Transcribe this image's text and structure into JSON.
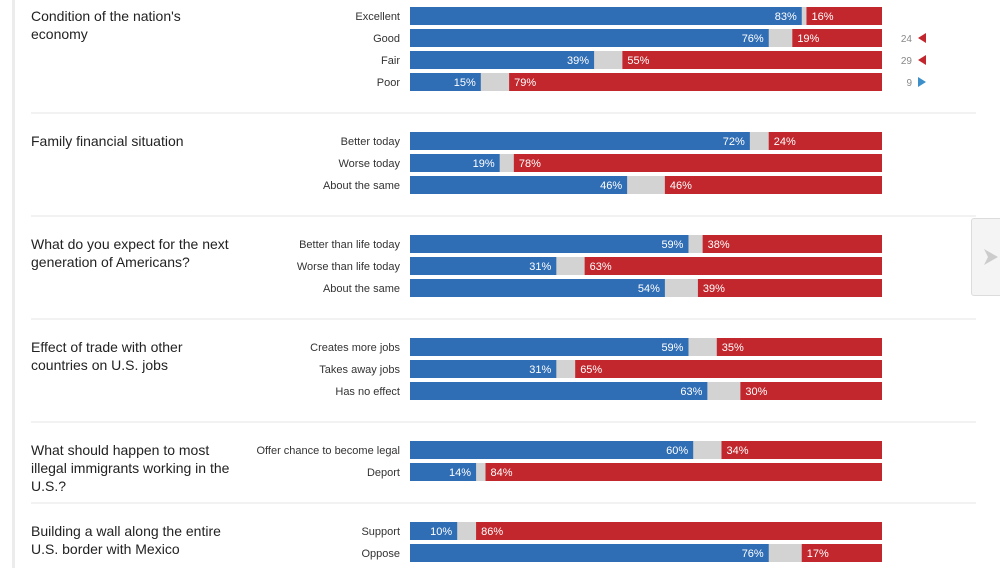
{
  "colors": {
    "blue": "#2f6db5",
    "red": "#c1272d",
    "gray": "#d3d3d3",
    "arrow_blue": "#3c8fc9",
    "arrow_red": "#c1272d"
  },
  "icons": {
    "next": "chevron-right-icon",
    "change_up": "triangle-left-icon",
    "change_down": "triangle-right-icon"
  },
  "chart_data": {
    "type": "bar",
    "stacked": true,
    "orientation": "horizontal",
    "value_format": "percent",
    "xlim": [
      0,
      100
    ],
    "groups": [
      {
        "question": "Condition of the nation's economy",
        "rows": [
          {
            "label": "Excellent",
            "blue": 83,
            "red": 16
          },
          {
            "label": "Good",
            "blue": 76,
            "red": 19,
            "change": 24,
            "change_dir": "red"
          },
          {
            "label": "Fair",
            "blue": 39,
            "red": 55,
            "change": 29,
            "change_dir": "red"
          },
          {
            "label": "Poor",
            "blue": 15,
            "red": 79,
            "change": 9,
            "change_dir": "blue"
          }
        ]
      },
      {
        "question": "Family financial situation",
        "rows": [
          {
            "label": "Better today",
            "blue": 72,
            "red": 24
          },
          {
            "label": "Worse today",
            "blue": 19,
            "red": 78
          },
          {
            "label": "About the same",
            "blue": 46,
            "red": 46
          }
        ]
      },
      {
        "question": "What do you expect for the next generation of Americans?",
        "rows": [
          {
            "label": "Better than life today",
            "blue": 59,
            "red": 38
          },
          {
            "label": "Worse than life today",
            "blue": 31,
            "red": 63
          },
          {
            "label": "About the same",
            "blue": 54,
            "red": 39
          }
        ]
      },
      {
        "question": "Effect of trade with other countries on U.S. jobs",
        "rows": [
          {
            "label": "Creates more jobs",
            "blue": 59,
            "red": 35
          },
          {
            "label": "Takes away jobs",
            "blue": 31,
            "red": 65
          },
          {
            "label": "Has no effect",
            "blue": 63,
            "red": 30
          }
        ]
      },
      {
        "question": "What should happen to most illegal immigrants working in the U.S.?",
        "rows": [
          {
            "label": "Offer chance to become legal",
            "blue": 60,
            "red": 34
          },
          {
            "label": "Deport",
            "blue": 14,
            "red": 84
          }
        ]
      },
      {
        "question": "Building a wall along the entire U.S. border with Mexico",
        "rows": [
          {
            "label": "Support",
            "blue": 10,
            "red": 86
          },
          {
            "label": "Oppose",
            "blue": 76,
            "red": 17
          }
        ]
      }
    ]
  }
}
